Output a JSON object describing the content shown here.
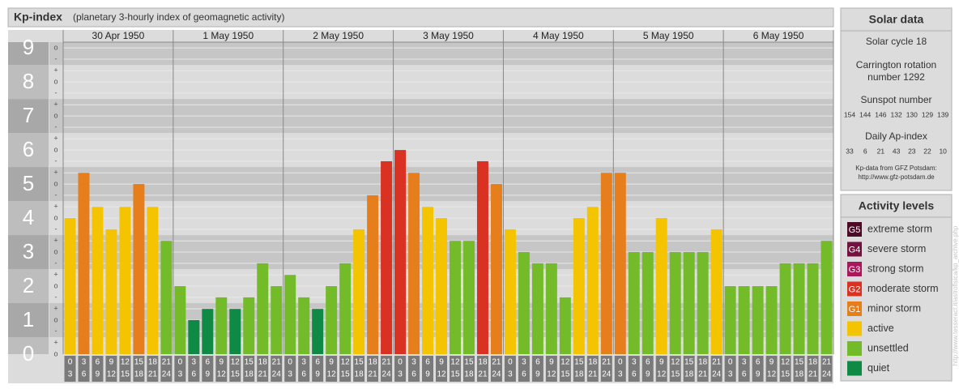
{
  "chart_data": {
    "type": "bar",
    "title": "Kp-index",
    "subtitle": "(planetary 3-hourly index of geomagnetic activity)",
    "ylim": [
      0,
      9.17
    ],
    "yticks": [
      0,
      1,
      2,
      3,
      4,
      5,
      6,
      7,
      8,
      9
    ],
    "minor_ticks": [
      {
        "value": 0,
        "label": "o"
      },
      {
        "value": 0.33,
        "label": "+"
      },
      {
        "value": 0.67,
        "label": "-"
      },
      {
        "value": 1,
        "label": "o"
      },
      {
        "value": 1.33,
        "label": "+"
      },
      {
        "value": 1.67,
        "label": "-"
      },
      {
        "value": 2,
        "label": "o"
      },
      {
        "value": 2.33,
        "label": "+"
      },
      {
        "value": 2.67,
        "label": "-"
      },
      {
        "value": 3,
        "label": "o"
      },
      {
        "value": 3.33,
        "label": "+"
      },
      {
        "value": 3.67,
        "label": "-"
      },
      {
        "value": 4,
        "label": "o"
      },
      {
        "value": 4.33,
        "label": "+"
      },
      {
        "value": 4.67,
        "label": "-"
      },
      {
        "value": 5,
        "label": "o"
      },
      {
        "value": 5.33,
        "label": "+"
      },
      {
        "value": 5.67,
        "label": "-"
      },
      {
        "value": 6,
        "label": "o"
      },
      {
        "value": 6.33,
        "label": "+"
      },
      {
        "value": 6.67,
        "label": "-"
      },
      {
        "value": 7,
        "label": "o"
      },
      {
        "value": 7.33,
        "label": "+"
      },
      {
        "value": 7.67,
        "label": "-"
      },
      {
        "value": 8,
        "label": "o"
      },
      {
        "value": 8.33,
        "label": "+"
      },
      {
        "value": 8.67,
        "label": "-"
      },
      {
        "value": 9,
        "label": "o"
      }
    ],
    "hours": [
      [
        "0",
        "3"
      ],
      [
        "3",
        "6"
      ],
      [
        "6",
        "9"
      ],
      [
        "9",
        "12"
      ],
      [
        "12",
        "15"
      ],
      [
        "15",
        "18"
      ],
      [
        "18",
        "21"
      ],
      [
        "21",
        "24"
      ]
    ],
    "days": [
      {
        "date": "30 Apr 1950",
        "values": [
          4,
          5.33,
          4.33,
          3.67,
          4.33,
          5,
          4.33,
          3.33
        ],
        "colors": [
          "#f5c400",
          "#e67e1c",
          "#f5c400",
          "#f5c400",
          "#f5c400",
          "#e67e1c",
          "#f5c400",
          "#74bb2a"
        ]
      },
      {
        "date": "1 May 1950",
        "values": [
          2,
          1,
          1.33,
          1.67,
          1.33,
          1.67,
          2.67,
          2
        ],
        "colors": [
          "#74bb2a",
          "#0e8a45",
          "#0e8a45",
          "#74bb2a",
          "#0e8a45",
          "#74bb2a",
          "#74bb2a",
          "#74bb2a"
        ]
      },
      {
        "date": "2 May 1950",
        "values": [
          2.33,
          1.67,
          1.33,
          2,
          2.67,
          3.67,
          4.67,
          5.67
        ],
        "colors": [
          "#74bb2a",
          "#74bb2a",
          "#0e8a45",
          "#74bb2a",
          "#74bb2a",
          "#f5c400",
          "#e67e1c",
          "#d93222"
        ]
      },
      {
        "date": "3 May 1950",
        "values": [
          6,
          5.33,
          4.33,
          4,
          3.33,
          3.33,
          5.67,
          5
        ],
        "colors": [
          "#d93222",
          "#e67e1c",
          "#f5c400",
          "#f5c400",
          "#74bb2a",
          "#74bb2a",
          "#d93222",
          "#e67e1c"
        ]
      },
      {
        "date": "4 May 1950",
        "values": [
          3.67,
          3,
          2.67,
          2.67,
          1.67,
          4,
          4.33,
          5.33
        ],
        "colors": [
          "#f5c400",
          "#74bb2a",
          "#74bb2a",
          "#74bb2a",
          "#74bb2a",
          "#f5c400",
          "#f5c400",
          "#e67e1c"
        ]
      },
      {
        "date": "5 May 1950",
        "values": [
          5.33,
          3,
          3,
          4,
          3,
          3,
          3,
          3.67
        ],
        "colors": [
          "#e67e1c",
          "#74bb2a",
          "#74bb2a",
          "#f5c400",
          "#74bb2a",
          "#74bb2a",
          "#74bb2a",
          "#f5c400"
        ]
      },
      {
        "date": "6 May 1950",
        "values": [
          2,
          2,
          2,
          2,
          2.67,
          2.67,
          2.67,
          3.33
        ],
        "colors": [
          "#74bb2a",
          "#74bb2a",
          "#74bb2a",
          "#74bb2a",
          "#74bb2a",
          "#74bb2a",
          "#74bb2a",
          "#74bb2a"
        ]
      }
    ],
    "solar": {
      "title": "Solar data",
      "cycle": "Solar cycle 18",
      "carrington": [
        "Carrington rotation",
        "number 1292"
      ],
      "sunspot_title": "Sunspot number",
      "sunspot": [
        154,
        144,
        146,
        132,
        130,
        129,
        139
      ],
      "ap_title": "Daily Ap-index",
      "ap": [
        33,
        6,
        21,
        43,
        23,
        22,
        10
      ],
      "source": "Kp-data from GFZ Potsdam:",
      "url": "http://www.gfz-potsdam.de"
    },
    "legend": {
      "title": "Activity levels",
      "items": [
        {
          "badge": "G5",
          "label": "extreme storm",
          "color": "#4d0a26"
        },
        {
          "badge": "G4",
          "label": "severe storm",
          "color": "#75103f"
        },
        {
          "badge": "G3",
          "label": "strong storm",
          "color": "#a8185a"
        },
        {
          "label": "moderate storm",
          "badge": "G2",
          "color": "#d93222"
        },
        {
          "badge": "G1",
          "label": "minor storm",
          "color": "#e67e1c"
        },
        {
          "label": "active",
          "color": "#f5c400"
        },
        {
          "label": "unsettled",
          "color": "#74bb2a"
        },
        {
          "label": "quiet",
          "color": "#0e8a45"
        }
      ]
    },
    "watermark": "http://www.tesseract.it/astrofisica/kp_archive.php"
  }
}
